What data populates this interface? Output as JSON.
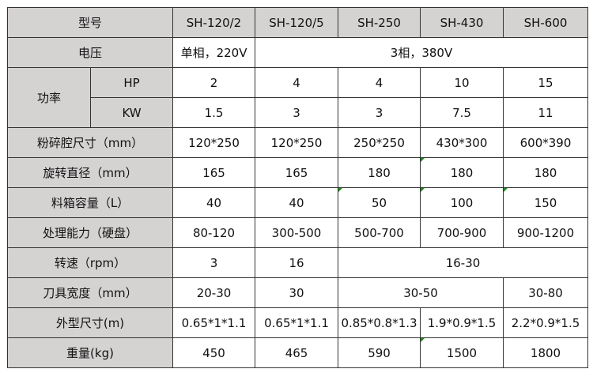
{
  "header": {
    "label": "型号",
    "models": [
      "SH-120/2",
      "SH-120/5",
      "SH-250",
      "SH-430",
      "SH-600"
    ]
  },
  "voltage": {
    "label": "电压",
    "single": "单相，220V",
    "three": "3相，380V"
  },
  "power": {
    "label": "功率",
    "hp_label": "HP",
    "hp": [
      "2",
      "4",
      "4",
      "10",
      "15"
    ],
    "kw_label": "KW",
    "kw": [
      "1.5",
      "3",
      "3",
      "7.5",
      "11"
    ]
  },
  "chamber": {
    "label": "粉碎腔尺寸（mm）",
    "values": [
      "120*250",
      "120*250",
      "250*250",
      "430*300",
      "600*390"
    ]
  },
  "rotation": {
    "label": "旋转直径（mm）",
    "values": [
      "165",
      "165",
      "180",
      "180",
      "180"
    ]
  },
  "hopper": {
    "label": "料箱容量（L）",
    "values": [
      "40",
      "40",
      "50",
      "100",
      "150"
    ]
  },
  "capacity": {
    "label": "处理能力（硬盘）",
    "values": [
      "80-120",
      "300-500",
      "500-700",
      "700-900",
      "900-1200"
    ]
  },
  "speed": {
    "label": "转速（rpm）",
    "v1": "3",
    "v2": "16",
    "v3": "16-30"
  },
  "blade": {
    "label": "刀具宽度（mm）",
    "v1": "20-30",
    "v2": "30",
    "v3": "30-50",
    "v4": "30-80"
  },
  "dimensions": {
    "label": "外型尺寸(m)",
    "values": [
      "0.65*1*1.1",
      "0.65*1*1.1",
      "0.85*0.8*1.3",
      "1.9*0.9*1.5",
      "2.2*0.9*1.5"
    ]
  },
  "weight": {
    "label": "重量(kg)",
    "values": [
      "450",
      "465",
      "590",
      "1500",
      "1800"
    ]
  }
}
